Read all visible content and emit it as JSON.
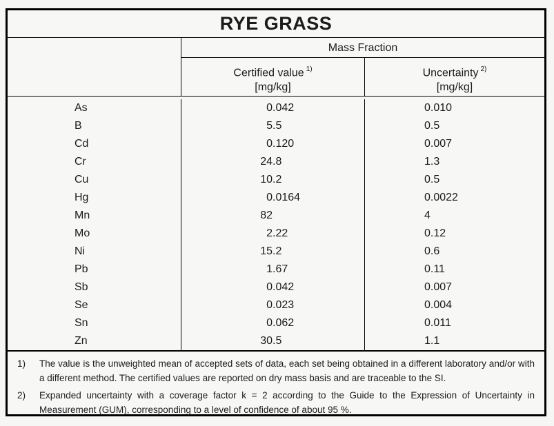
{
  "title": "RYE GRASS",
  "table": {
    "group_header": "Mass Fraction",
    "columns": {
      "certified": {
        "label": "Certified value",
        "footnote_ref": "1)",
        "unit": "[mg/kg]"
      },
      "uncertainty": {
        "label": "Uncertainty",
        "footnote_ref": "2)",
        "unit": "[mg/kg]"
      }
    },
    "rows": [
      {
        "element": "As",
        "certified": "0.042",
        "uncertainty": "0.010"
      },
      {
        "element": "B",
        "certified": "5.5",
        "uncertainty": "0.5"
      },
      {
        "element": "Cd",
        "certified": "0.120",
        "uncertainty": "0.007"
      },
      {
        "element": "Cr",
        "certified": "24.8",
        "uncertainty": "1.3"
      },
      {
        "element": "Cu",
        "certified": "10.2",
        "uncertainty": "0.5"
      },
      {
        "element": "Hg",
        "certified": "0.0164",
        "uncertainty": "0.0022"
      },
      {
        "element": "Mn",
        "certified": "82",
        "uncertainty": "4"
      },
      {
        "element": "Mo",
        "certified": "2.22",
        "uncertainty": "0.12"
      },
      {
        "element": "Ni",
        "certified": "15.2",
        "uncertainty": "0.6"
      },
      {
        "element": "Pb",
        "certified": "1.67",
        "uncertainty": "0.11"
      },
      {
        "element": "Sb",
        "certified": "0.042",
        "uncertainty": "0.007"
      },
      {
        "element": "Se",
        "certified": "0.023",
        "uncertainty": "0.004"
      },
      {
        "element": "Sn",
        "certified": "0.062",
        "uncertainty": "0.011"
      },
      {
        "element": "Zn",
        "certified": "30.5",
        "uncertainty": "1.1"
      }
    ]
  },
  "footnotes": [
    {
      "marker": "1)",
      "text": "The value is the unweighted mean of accepted sets of data, each set being obtained in a different laboratory and/or with a different method. The certified values are reported on dry mass basis and are traceable to the SI."
    },
    {
      "marker": "2)",
      "text": "Expanded uncertainty with a coverage factor k = 2 according to the Guide to the Expression of Uncertainty in Measurement (GUM), corresponding to a level of confidence of about 95 %."
    }
  ],
  "colors": {
    "border": "#000000",
    "text": "#1b1b1b",
    "background": "#f7f7f6"
  }
}
